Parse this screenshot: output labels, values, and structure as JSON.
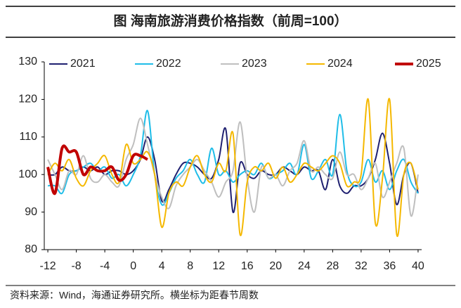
{
  "chart_data": {
    "type": "line",
    "title": "图  海南旅游消费价格指数（前周=100）",
    "source": "资料来源：Wind，海通证券研究所。横坐标为距春节周数",
    "x": [
      -12,
      -11,
      -10,
      -9,
      -8,
      -7,
      -6,
      -5,
      -4,
      -3,
      -2,
      -1,
      0,
      1,
      2,
      3,
      4,
      5,
      6,
      7,
      8,
      9,
      10,
      11,
      12,
      13,
      14,
      15,
      16,
      17,
      18,
      19,
      20,
      21,
      22,
      23,
      24,
      25,
      26,
      27,
      28,
      29,
      30,
      31,
      32,
      33,
      34,
      35,
      36,
      37,
      38,
      39,
      40
    ],
    "xlim": [
      -12.5,
      40.5
    ],
    "xticks": [
      -12,
      -8,
      -4,
      0,
      4,
      8,
      12,
      16,
      20,
      24,
      28,
      32,
      36,
      40
    ],
    "ylim": [
      80,
      130
    ],
    "yticks": [
      80,
      90,
      100,
      110,
      120,
      130
    ],
    "series": [
      {
        "name": "2021",
        "color": "#1f2070",
        "line_width": 2,
        "values": [
          100,
          100,
          102,
          101,
          101,
          102,
          101,
          102,
          100,
          101,
          101,
          100,
          101,
          104,
          110,
          104,
          93,
          96,
          100,
          103,
          103,
          102,
          100,
          99,
          104,
          112,
          90,
          103,
          100,
          99,
          101,
          100,
          100,
          102,
          101,
          100,
          102,
          101,
          101,
          96,
          104,
          97,
          95,
          97,
          97,
          99,
          104,
          111,
          103,
          92,
          100,
          103,
          95
        ]
      },
      {
        "name": "2022",
        "color": "#1fbde8",
        "line_width": 2,
        "values": [
          97,
          97,
          95,
          100,
          101,
          102,
          103,
          101,
          102,
          99,
          100,
          97,
          100,
          105,
          117,
          100,
          92,
          95,
          99,
          101,
          104,
          100,
          98,
          107,
          100,
          101,
          98,
          100,
          101,
          100,
          103,
          99,
          100,
          101,
          103,
          100,
          108,
          99,
          101,
          104,
          100,
          116,
          101,
          97,
          98,
          104,
          98,
          101,
          96,
          101,
          104,
          98,
          95
        ]
      },
      {
        "name": "2023",
        "color": "#bfbfbf",
        "line_width": 2,
        "values": [
          104,
          100,
          96,
          101,
          100,
          105,
          99,
          98,
          100,
          98,
          97,
          104,
          108,
          115,
          108,
          100,
          94,
          91,
          97,
          100,
          102,
          104,
          101,
          98,
          94,
          98,
          101,
          114,
          99,
          90,
          102,
          99,
          100,
          97,
          101,
          103,
          109,
          101,
          102,
          100,
          99,
          106,
          100,
          100,
          96,
          99,
          103,
          94,
          98,
          103,
          107,
          89,
          100
        ]
      },
      {
        "name": "2024",
        "color": "#f5b800",
        "line_width": 2,
        "values": [
          100,
          103,
          101,
          104,
          99,
          97,
          101,
          103,
          105,
          100,
          98,
          108,
          103,
          104,
          106,
          100,
          86,
          95,
          98,
          97,
          102,
          105,
          100,
          98,
          103,
          101,
          111,
          84,
          98,
          102,
          101,
          103,
          99,
          102,
          98,
          100,
          103,
          102,
          101,
          103,
          105,
          103,
          97,
          98,
          100,
          120,
          87,
          99,
          120,
          84,
          100,
          103,
          96
        ]
      },
      {
        "name": "2025",
        "color": "#c00000",
        "line_width": 4,
        "values": [
          102,
          95,
          107,
          106,
          106,
          100,
          102,
          101,
          101,
          102,
          98.5,
          100,
          105,
          105,
          104,
          null,
          null,
          null,
          null,
          null,
          null,
          null,
          null,
          null,
          null,
          null,
          null,
          null,
          null,
          null,
          null,
          null,
          null,
          null,
          null,
          null,
          null,
          null,
          null,
          null,
          null,
          null,
          null,
          null,
          null,
          null,
          null,
          null,
          null,
          null,
          null,
          null,
          null
        ]
      }
    ]
  }
}
